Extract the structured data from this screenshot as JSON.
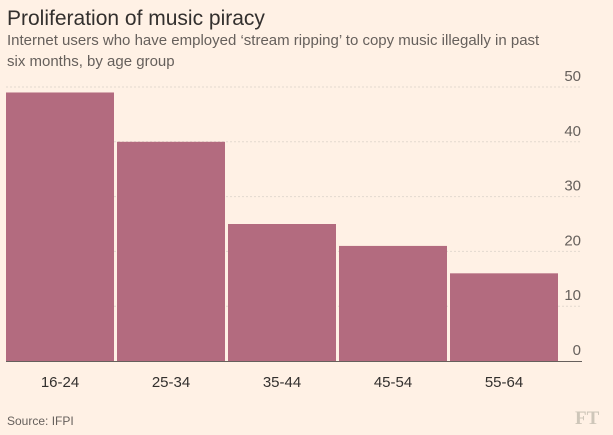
{
  "chart_data": {
    "type": "bar",
    "title": "Proliferation of music piracy",
    "subtitle_lines": [
      "Internet users who have employed ‘stream ripping’ to copy music illegally in past",
      "six months, by age group"
    ],
    "categories": [
      "16-24",
      "25-34",
      "35-44",
      "45-54",
      "55-64"
    ],
    "values": [
      49,
      40,
      25,
      21,
      16
    ],
    "ylim": [
      0,
      50
    ],
    "yticks": [
      0,
      10,
      20,
      30,
      40,
      50
    ],
    "grid": true,
    "bar_color": "#b36b7f",
    "source": "Source: IFPI",
    "logo": "FT"
  }
}
